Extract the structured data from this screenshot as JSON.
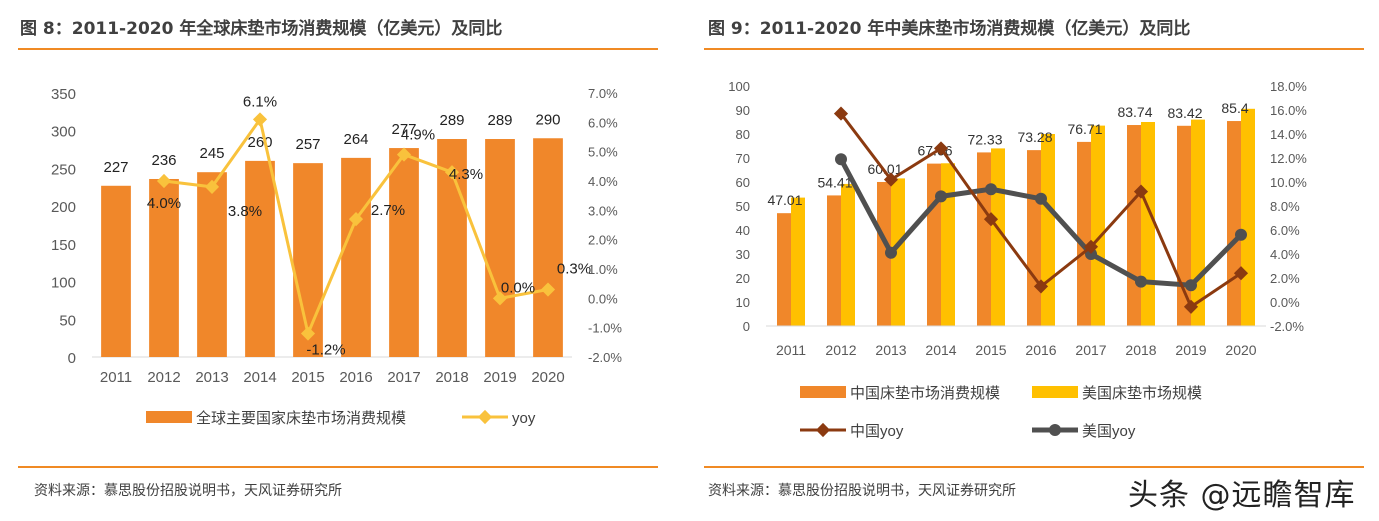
{
  "colors": {
    "accent": "#f08a24",
    "bar_orange": "#f0872a",
    "bar_yellow": "#ffc000",
    "line_yoy": "#f9c23c",
    "line_china": "#8b3a10",
    "line_usa": "#505050"
  },
  "left": {
    "title": "图 8：2011-2020 年全球床垫市场消费规模（亿美元）及同比",
    "source": "资料来源：慕思股份招股说明书，天风证券研究所"
  },
  "right": {
    "title": "图 9：2011-2020 年中美床垫市场消费规模（亿美元）及同比",
    "source": "资料来源：慕思股份招股说明书，天风证券研究所"
  },
  "watermark": "头条 @远瞻智库",
  "chart_data": [
    {
      "type": "bar",
      "title": "图 8：2011-2020 年全球床垫市场消费规模（亿美元）及同比",
      "categories": [
        "2011",
        "2012",
        "2013",
        "2014",
        "2015",
        "2016",
        "2017",
        "2018",
        "2019",
        "2020"
      ],
      "ylim": [
        0,
        350
      ],
      "yticks": [
        0,
        50,
        100,
        150,
        200,
        250,
        300,
        350
      ],
      "y2lim": [
        -2.0,
        7.0
      ],
      "y2ticks": [
        -2.0,
        -1.0,
        0.0,
        1.0,
        2.0,
        3.0,
        4.0,
        5.0,
        6.0,
        7.0
      ],
      "y2tick_labels": [
        "-2.0%",
        "-1.0%",
        "0.0%",
        "1.0%",
        "2.0%",
        "3.0%",
        "4.0%",
        "5.0%",
        "6.0%",
        "7.0%"
      ],
      "series": [
        {
          "name": "全球主要国家床垫市场消费规模",
          "type": "bar",
          "axis": "left",
          "values": [
            227,
            236,
            245,
            260,
            257,
            264,
            277,
            289,
            289,
            290
          ],
          "labels": [
            "227",
            "236",
            "245",
            "260",
            "257",
            "264",
            "277",
            "289",
            "289",
            "290"
          ]
        },
        {
          "name": "yoy",
          "type": "line",
          "axis": "right",
          "values": [
            null,
            4.0,
            3.8,
            6.1,
            -1.2,
            2.7,
            4.9,
            4.3,
            0.0,
            0.3
          ],
          "labels": [
            "",
            "4.0%",
            "3.8%",
            "6.1%",
            "-1.2%",
            "2.7%",
            "4.9%",
            "4.3%",
            "0.0%",
            "0.3%"
          ]
        }
      ],
      "legend": [
        "全球主要国家床垫市场消费规模",
        "yoy"
      ],
      "legend_position": "bottom"
    },
    {
      "type": "bar",
      "title": "图 9：2011-2020 年中美床垫市场消费规模（亿美元）及同比",
      "categories": [
        "2011",
        "2012",
        "2013",
        "2014",
        "2015",
        "2016",
        "2017",
        "2018",
        "2019",
        "2020"
      ],
      "ylim": [
        0,
        100
      ],
      "yticks": [
        0,
        10,
        20,
        30,
        40,
        50,
        60,
        70,
        80,
        90,
        100
      ],
      "y2lim": [
        -2.0,
        18.0
      ],
      "y2ticks": [
        -2.0,
        0.0,
        2.0,
        4.0,
        6.0,
        8.0,
        10.0,
        12.0,
        14.0,
        16.0,
        18.0
      ],
      "y2tick_labels": [
        "-2.0%",
        "0.0%",
        "2.0%",
        "4.0%",
        "6.0%",
        "8.0%",
        "10.0%",
        "12.0%",
        "14.0%",
        "16.0%",
        "18.0%"
      ],
      "series": [
        {
          "name": "中国床垫市场消费规模",
          "type": "bar",
          "axis": "left",
          "values": [
            47.01,
            54.41,
            60.01,
            67.66,
            72.33,
            73.28,
            76.71,
            83.74,
            83.42,
            85.4
          ],
          "labels": [
            "47.01",
            "54.41",
            "60.01",
            "67.66",
            "72.33",
            "73.28",
            "76.71",
            "83.74",
            "83.42",
            "85.4"
          ]
        },
        {
          "name": "美国床垫市场规模",
          "type": "bar",
          "axis": "left",
          "values": [
            53.5,
            59.2,
            61.5,
            67.8,
            74.0,
            80.0,
            83.5,
            85.0,
            86.0,
            90.5
          ],
          "labels": [
            "",
            "",
            "",
            "",
            "",
            "",
            "",
            "",
            "",
            ""
          ]
        },
        {
          "name": "中国yoy",
          "type": "line",
          "axis": "right",
          "values": [
            null,
            15.7,
            10.2,
            12.8,
            6.9,
            1.3,
            4.6,
            9.2,
            -0.4,
            2.4
          ],
          "labels": [
            "",
            "",
            "",
            "",
            "",
            "",
            "",
            "",
            "",
            ""
          ]
        },
        {
          "name": "美国yoy",
          "type": "line",
          "axis": "right",
          "values": [
            null,
            11.9,
            4.1,
            8.8,
            9.4,
            8.6,
            4.0,
            1.7,
            1.4,
            5.6
          ],
          "labels": [
            "",
            "",
            "",
            "",
            "",
            "",
            "",
            "",
            "",
            ""
          ]
        }
      ],
      "legend": [
        "中国床垫市场消费规模",
        "美国床垫市场规模",
        "中国yoy",
        "美国yoy"
      ],
      "legend_position": "bottom"
    }
  ]
}
